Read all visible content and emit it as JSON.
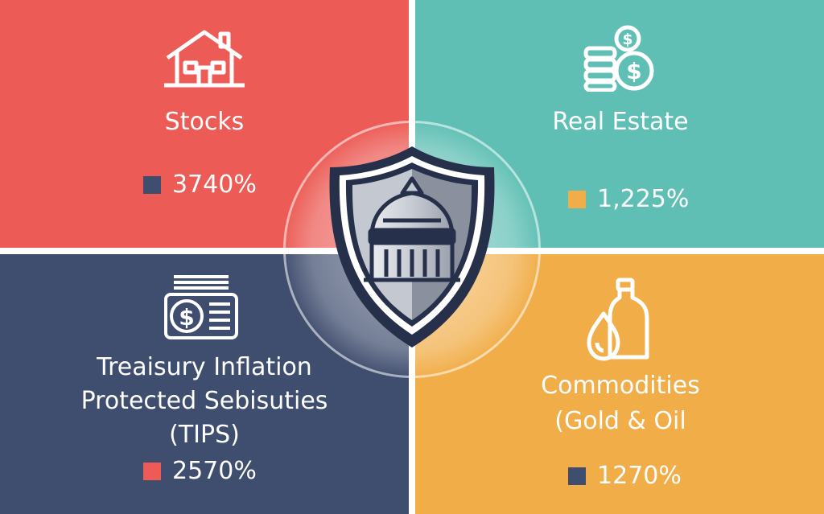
{
  "colors": {
    "stocks_bg": "#ec5b55",
    "real_estate_bg": "#5fbfb4",
    "tips_bg": "#3f4d6e",
    "commodities_bg": "#f1ad48",
    "navy_swatch": "#3f4d6e",
    "orange_swatch": "#f1ad48",
    "red_swatch": "#ec5b55",
    "shield_dark": "#27304a",
    "shield_light": "#a9afbb"
  },
  "quadrants": {
    "stocks": {
      "label": "Stocks",
      "value": "3740%",
      "icon": "house-icon"
    },
    "real_estate": {
      "label": "Real Estate",
      "value": "1,225%",
      "icon": "coin-stack-icon"
    },
    "tips": {
      "label_lines": [
        "Treaisury Inflation",
        "Protected Sebisuties",
        "(TIPS)"
      ],
      "value": "2570%",
      "icon": "cash-bundle-icon"
    },
    "commodities": {
      "label_lines": [
        "Commodities",
        "(Gold & Oil"
      ],
      "value": "1270%",
      "icon": "oil-drop-bottle-icon"
    }
  },
  "center": {
    "icon": "knight-helmet-shield-icon"
  }
}
